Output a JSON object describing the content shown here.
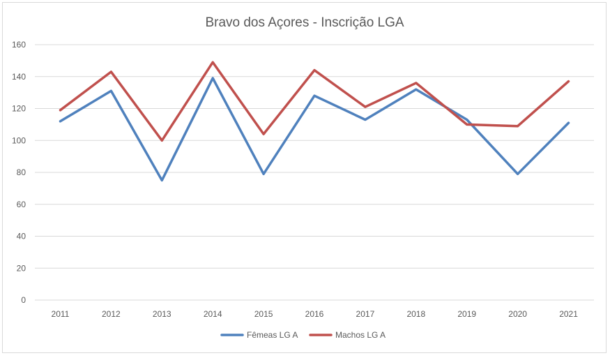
{
  "chart_data": {
    "type": "line",
    "title": "Bravo dos Açores - Inscrição LGA",
    "xlabel": "",
    "ylabel": "",
    "categories": [
      "2011",
      "2012",
      "2013",
      "2014",
      "2015",
      "2016",
      "2017",
      "2018",
      "2019",
      "2020",
      "2021"
    ],
    "ylim": [
      0,
      160
    ],
    "yticks": [
      0,
      20,
      40,
      60,
      80,
      100,
      120,
      140,
      160
    ],
    "ytick_labels": [
      "0",
      "20",
      "40",
      "60",
      "80",
      "100",
      "120",
      "140",
      "160"
    ],
    "grid": true,
    "legend_position": "bottom",
    "series": [
      {
        "name": "Fêmeas LG A",
        "color": "#4f81bd",
        "values": [
          112,
          131,
          75,
          139,
          79,
          128,
          113,
          132,
          113,
          79,
          111
        ]
      },
      {
        "name": "Machos LG A",
        "color": "#c0504d",
        "values": [
          119,
          143,
          100,
          149,
          104,
          144,
          121,
          136,
          110,
          109,
          137
        ]
      }
    ]
  }
}
